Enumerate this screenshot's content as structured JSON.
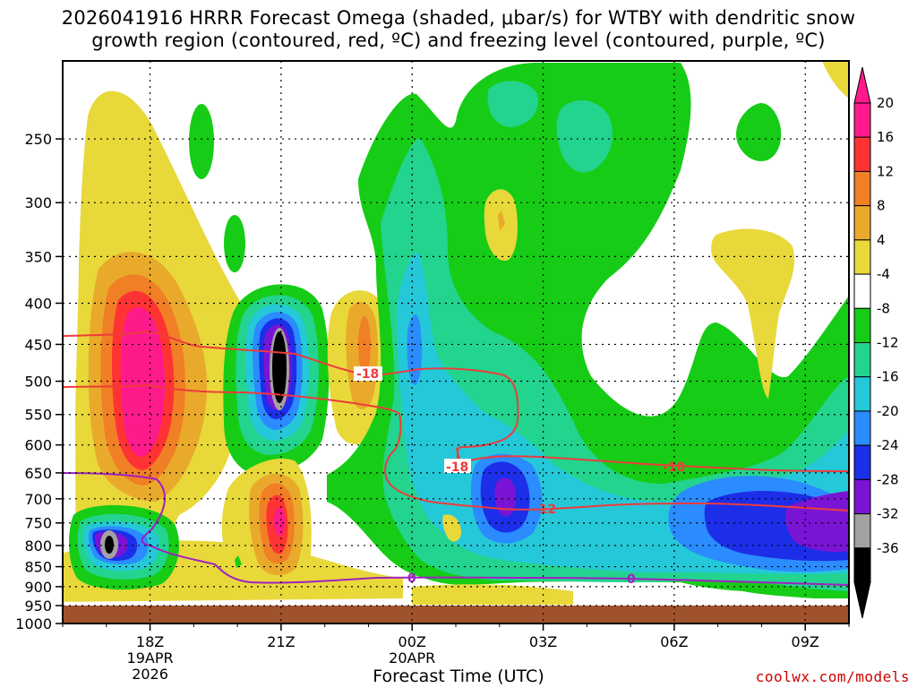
{
  "title_line1": "2026041916 HRRR Forecast Omega (shaded, μbar/s) for WTBY with dendritic snow",
  "title_line2": "growth region (contoured, red, ºC) and freezing level (contoured, purple, ºC)",
  "credit": "coolwx.com/models",
  "chart_data": {
    "type": "time-height contour (filled)",
    "xlabel": "Forecast Time (UTC)",
    "ylabel": "",
    "x_ticks": [
      {
        "label": "18Z",
        "sub": [
          "19APR",
          "2026"
        ],
        "hour": 2
      },
      {
        "label": "21Z",
        "sub": [],
        "hour": 5
      },
      {
        "label": "00Z",
        "sub": [
          "20APR"
        ],
        "hour": 8
      },
      {
        "label": "03Z",
        "sub": [],
        "hour": 11
      },
      {
        "label": "06Z",
        "sub": [],
        "hour": 14
      },
      {
        "label": "09Z",
        "sub": [],
        "hour": 17
      }
    ],
    "x_range_hours": [
      0,
      18
    ],
    "y_ticks": [
      250,
      300,
      350,
      400,
      450,
      500,
      550,
      600,
      650,
      700,
      750,
      800,
      850,
      900,
      950,
      1000
    ],
    "y_range_hpa": [
      200,
      1000
    ],
    "grid": true,
    "colorbar": {
      "levels": [
        20,
        16,
        12,
        8,
        4,
        -4,
        -8,
        -12,
        -16,
        -20,
        -24,
        -28,
        -32,
        -36
      ],
      "colors": [
        "#ff1a8c",
        "#ff3333",
        "#f07f26",
        "#e9aa2b",
        "#e8d83a",
        "#ffffff",
        "#16cc16",
        "#22d48e",
        "#25c8d8",
        "#2a8cff",
        "#1c2ee8",
        "#7a14d4",
        "#a2a2a2",
        "#000000"
      ]
    },
    "contours": [
      {
        "label": "-18",
        "color": "#ee3b3b"
      },
      {
        "label": "-12",
        "color": "#ee3b3b"
      },
      {
        "label": "0",
        "color": "#a020c0"
      }
    ]
  }
}
